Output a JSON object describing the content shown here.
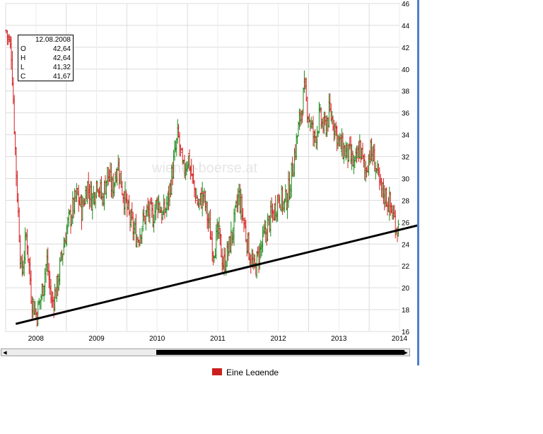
{
  "chart_data": {
    "type": "ohlc",
    "x_tick_labels": [
      "2008",
      "2009",
      "2010",
      "2011",
      "2012",
      "2013",
      "2014"
    ],
    "y_tick_labels": [
      16,
      18,
      20,
      22,
      24,
      26,
      28,
      30,
      32,
      34,
      36,
      38,
      40,
      42,
      44,
      46
    ],
    "ylim": [
      16,
      46
    ],
    "xlim": [
      "2008-01",
      "2014-07"
    ],
    "grid": true,
    "up_color": "#1a8a1a",
    "down_color": "#d42020",
    "trendline": {
      "start": {
        "date": "2008-03",
        "price": 16.7
      },
      "end": {
        "date": "2014-07",
        "price": 25.3
      },
      "color": "#000000"
    },
    "anchors": [
      [
        "2008-01",
        43.5
      ],
      [
        "2008-02",
        41.5
      ],
      [
        "2008-03",
        30
      ],
      [
        "2008-04",
        21
      ],
      [
        "2008-05",
        25
      ],
      [
        "2008-06",
        19
      ],
      [
        "2008-07",
        17.5
      ],
      [
        "2008-08",
        19.5
      ],
      [
        "2008-09",
        22.5
      ],
      [
        "2008-10",
        18.5
      ],
      [
        "2008-11",
        20
      ],
      [
        "2008-12",
        23
      ],
      [
        "2009-01",
        25.5
      ],
      [
        "2009-02",
        27
      ],
      [
        "2009-03",
        28.5
      ],
      [
        "2009-04",
        27
      ],
      [
        "2009-05",
        29.5
      ],
      [
        "2009-06",
        28
      ],
      [
        "2009-07",
        30
      ],
      [
        "2009-08",
        28
      ],
      [
        "2009-09",
        30.5
      ],
      [
        "2009-10",
        29
      ],
      [
        "2009-11",
        31.5
      ],
      [
        "2009-12",
        29
      ],
      [
        "2010-01",
        27
      ],
      [
        "2010-02",
        25.5
      ],
      [
        "2010-03",
        24.5
      ],
      [
        "2010-04",
        26
      ],
      [
        "2010-05",
        27
      ],
      [
        "2010-06",
        26.5
      ],
      [
        "2010-07",
        28
      ],
      [
        "2010-08",
        26.5
      ],
      [
        "2010-09",
        28
      ],
      [
        "2010-10",
        31
      ],
      [
        "2010-11",
        34
      ],
      [
        "2010-12",
        30.5
      ],
      [
        "2011-01",
        32
      ],
      [
        "2011-02",
        29.5
      ],
      [
        "2011-03",
        27.5
      ],
      [
        "2011-04",
        28.5
      ],
      [
        "2011-05",
        26
      ],
      [
        "2011-06",
        23.5
      ],
      [
        "2011-07",
        25
      ],
      [
        "2011-08",
        22
      ],
      [
        "2011-09",
        23.5
      ],
      [
        "2011-10",
        25.5
      ],
      [
        "2011-11",
        28.5
      ],
      [
        "2011-12",
        26
      ],
      [
        "2012-01",
        23.5
      ],
      [
        "2012-02",
        21.5
      ],
      [
        "2012-03",
        23
      ],
      [
        "2012-04",
        24.5
      ],
      [
        "2012-05",
        26
      ],
      [
        "2012-06",
        27
      ],
      [
        "2012-07",
        28.5
      ],
      [
        "2012-08",
        27.5
      ],
      [
        "2012-09",
        29
      ],
      [
        "2012-10",
        32
      ],
      [
        "2012-11",
        35
      ],
      [
        "2012-12",
        38
      ],
      [
        "2013-01",
        35.5
      ],
      [
        "2013-02",
        33.5
      ],
      [
        "2013-03",
        35.5
      ],
      [
        "2013-04",
        34.5
      ],
      [
        "2013-05",
        36
      ],
      [
        "2013-06",
        35
      ],
      [
        "2013-07",
        33
      ],
      [
        "2013-08",
        32.5
      ],
      [
        "2013-09",
        32
      ],
      [
        "2013-10",
        31
      ],
      [
        "2013-11",
        33
      ],
      [
        "2013-12",
        30.5
      ],
      [
        "2014-01",
        32.5
      ],
      [
        "2014-02",
        31.5
      ],
      [
        "2014-03",
        29
      ],
      [
        "2014-04",
        28.5
      ],
      [
        "2014-05",
        27.5
      ],
      [
        "2014-06",
        26
      ],
      [
        "2014-07",
        25.2
      ]
    ]
  },
  "ohlc_tooltip": {
    "date": "12.08.2008",
    "rows": [
      {
        "label": "O",
        "value": "42,64"
      },
      {
        "label": "H",
        "value": "42,64"
      },
      {
        "label": "L",
        "value": "41,32"
      },
      {
        "label": "C",
        "value": "41,67"
      }
    ]
  },
  "watermark": "wiener-boerse.at",
  "legend": {
    "label": "Eine Legende",
    "swatch_color": "#cc2020"
  }
}
